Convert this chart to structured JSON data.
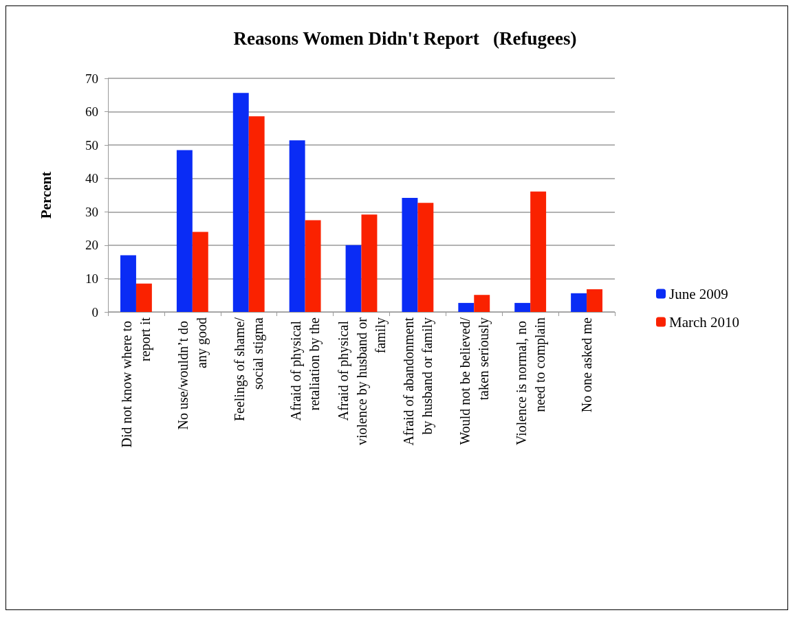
{
  "chart_data": {
    "type": "bar",
    "title": "Reasons Women Didn't Report   (Refugees)",
    "ylabel": "Percent",
    "categories": [
      "Did not know where to report it",
      "No use/wouldn’t do any good",
      "Feelings of shame/social stigma",
      "Afraid of physical retaliation by the",
      "Afraid of physical violence by husband or family",
      "Afraid of abandonment by husband or family",
      "Would not be believed/ taken seriously",
      "Violence is normal, no need to complain",
      "No one asked me"
    ],
    "series": [
      {
        "name": "June 2009",
        "color": "#0a2cf5",
        "values": [
          17.0,
          48.5,
          65.6,
          51.4,
          20.0,
          34.2,
          2.7,
          2.7,
          5.6
        ]
      },
      {
        "name": "March 2010",
        "color": "#fa2200",
        "values": [
          8.5,
          24.0,
          58.6,
          27.5,
          29.2,
          32.7,
          5.1,
          36.1,
          6.8
        ]
      }
    ],
    "ylim": [
      0,
      70
    ],
    "yticks": [
      0,
      10,
      20,
      30,
      40,
      50,
      60,
      70
    ],
    "grid": "y",
    "legend": "right"
  }
}
